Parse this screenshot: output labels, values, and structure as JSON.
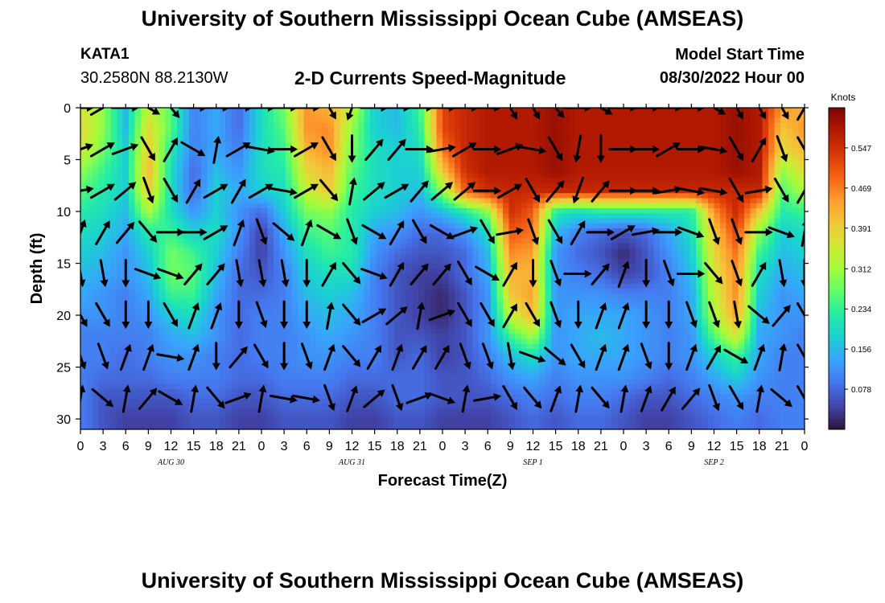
{
  "header": {
    "title": "University of Southern Mississippi Ocean Cube (AMSEAS)",
    "station": "KATA1",
    "coords": "30.2580N  88.2130W",
    "subtitle": "2-D Currents Speed-Magnitude",
    "model_start_label": "Model Start Time",
    "model_start_value": "08/30/2022 Hour 00"
  },
  "footer": {
    "title": "University of Southern Mississippi Ocean Cube (AMSEAS)"
  },
  "chart_data": {
    "type": "heatmap",
    "title": "2-D Currents Speed-Magnitude",
    "xlabel": "Forecast Time(Z)",
    "ylabel": "Depth (ft)",
    "xlim": [
      0,
      96
    ],
    "ylim": [
      0,
      31
    ],
    "x_ticks": [
      0,
      3,
      6,
      9,
      12,
      15,
      18,
      21,
      24,
      27,
      30,
      33,
      36,
      39,
      42,
      45,
      48,
      51,
      54,
      57,
      60,
      63,
      66,
      69,
      72,
      75,
      78,
      81,
      84,
      87,
      90,
      93,
      96
    ],
    "x_tick_labels": [
      "0",
      "3",
      "6",
      "9",
      "12",
      "15",
      "18",
      "21",
      "0",
      "3",
      "6",
      "9",
      "12",
      "15",
      "18",
      "21",
      "0",
      "3",
      "6",
      "9",
      "12",
      "15",
      "18",
      "21",
      "0",
      "3",
      "6",
      "9",
      "12",
      "15",
      "18",
      "21",
      "0"
    ],
    "day_labels": [
      {
        "x": 12,
        "label": "AUG 30"
      },
      {
        "x": 36,
        "label": "AUG 31"
      },
      {
        "x": 60,
        "label": "SEP 1"
      },
      {
        "x": 84,
        "label": "SEP 2"
      }
    ],
    "y_ticks": [
      0,
      5,
      10,
      15,
      20,
      25,
      30
    ],
    "y_tick_labels": [
      "0",
      "5",
      "10",
      "15",
      "20",
      "25",
      "30"
    ],
    "y_inverted": true,
    "colorbar": {
      "label": "Knots",
      "range": [
        0,
        0.625
      ],
      "ticks": [
        0.078,
        0.156,
        0.234,
        0.312,
        0.391,
        0.469,
        0.547
      ],
      "tick_labels": [
        "0.078",
        "0.156",
        "0.234",
        "0.312",
        "0.391",
        "0.469",
        "0.547"
      ],
      "colors": [
        "#30123b",
        "#4145ab",
        "#4675ed",
        "#39a2fc",
        "#1bcfd4",
        "#24eca6",
        "#61fc6c",
        "#a4fc3b",
        "#d1e834",
        "#f3c63a",
        "#fe9b2d",
        "#f36315",
        "#d93806",
        "#b11901",
        "#7a0403"
      ]
    },
    "speed_grid": {
      "x": [
        0,
        3,
        6,
        9,
        12,
        15,
        18,
        21,
        24,
        27,
        30,
        33,
        36,
        39,
        42,
        45,
        48,
        51,
        54,
        57,
        60,
        63,
        66,
        69,
        72,
        75,
        78,
        81,
        84,
        87,
        90,
        93,
        96
      ],
      "depth": [
        0,
        2,
        4,
        6,
        8,
        10,
        12,
        14,
        16,
        18,
        20,
        22,
        24,
        26,
        28,
        30
      ],
      "values": [
        [
          0.36,
          0.3,
          0.16,
          0.34,
          0.26,
          0.1,
          0.14,
          0.08,
          0.2,
          0.28,
          0.45,
          0.42,
          0.34,
          0.18,
          0.16,
          0.24,
          0.52,
          0.56,
          0.58,
          0.58,
          0.58,
          0.6,
          0.58,
          0.58,
          0.58,
          0.58,
          0.58,
          0.58,
          0.58,
          0.6,
          0.58,
          0.45,
          0.42
        ],
        [
          0.38,
          0.3,
          0.16,
          0.38,
          0.26,
          0.1,
          0.14,
          0.08,
          0.2,
          0.26,
          0.45,
          0.46,
          0.3,
          0.18,
          0.16,
          0.22,
          0.52,
          0.56,
          0.58,
          0.58,
          0.58,
          0.6,
          0.58,
          0.58,
          0.58,
          0.58,
          0.58,
          0.58,
          0.58,
          0.6,
          0.58,
          0.4,
          0.45
        ],
        [
          0.36,
          0.28,
          0.18,
          0.4,
          0.22,
          0.1,
          0.14,
          0.1,
          0.2,
          0.24,
          0.42,
          0.46,
          0.28,
          0.2,
          0.18,
          0.2,
          0.48,
          0.56,
          0.58,
          0.58,
          0.58,
          0.6,
          0.58,
          0.58,
          0.58,
          0.58,
          0.58,
          0.58,
          0.58,
          0.6,
          0.58,
          0.38,
          0.42
        ],
        [
          0.3,
          0.24,
          0.18,
          0.42,
          0.2,
          0.08,
          0.16,
          0.12,
          0.2,
          0.22,
          0.38,
          0.42,
          0.26,
          0.2,
          0.18,
          0.18,
          0.4,
          0.55,
          0.58,
          0.58,
          0.58,
          0.6,
          0.58,
          0.58,
          0.58,
          0.58,
          0.58,
          0.58,
          0.58,
          0.6,
          0.58,
          0.3,
          0.38
        ],
        [
          0.26,
          0.22,
          0.18,
          0.4,
          0.2,
          0.08,
          0.18,
          0.14,
          0.18,
          0.2,
          0.34,
          0.4,
          0.24,
          0.2,
          0.18,
          0.16,
          0.3,
          0.5,
          0.55,
          0.56,
          0.56,
          0.56,
          0.56,
          0.56,
          0.56,
          0.56,
          0.56,
          0.56,
          0.56,
          0.56,
          0.56,
          0.26,
          0.32
        ],
        [
          0.22,
          0.2,
          0.16,
          0.32,
          0.2,
          0.12,
          0.18,
          0.12,
          0.08,
          0.18,
          0.28,
          0.3,
          0.22,
          0.18,
          0.16,
          0.12,
          0.16,
          0.22,
          0.3,
          0.55,
          0.5,
          0.22,
          0.2,
          0.22,
          0.22,
          0.22,
          0.22,
          0.22,
          0.45,
          0.56,
          0.4,
          0.22,
          0.24
        ],
        [
          0.2,
          0.18,
          0.14,
          0.22,
          0.24,
          0.18,
          0.2,
          0.12,
          0.04,
          0.14,
          0.24,
          0.26,
          0.22,
          0.14,
          0.12,
          0.08,
          0.08,
          0.12,
          0.2,
          0.5,
          0.48,
          0.16,
          0.1,
          0.08,
          0.06,
          0.08,
          0.14,
          0.2,
          0.4,
          0.52,
          0.3,
          0.18,
          0.2
        ],
        [
          0.18,
          0.16,
          0.12,
          0.18,
          0.28,
          0.24,
          0.18,
          0.1,
          0.04,
          0.12,
          0.2,
          0.24,
          0.22,
          0.12,
          0.08,
          0.06,
          0.06,
          0.08,
          0.16,
          0.46,
          0.44,
          0.12,
          0.08,
          0.06,
          0.02,
          0.06,
          0.12,
          0.18,
          0.38,
          0.48,
          0.24,
          0.16,
          0.18
        ],
        [
          0.16,
          0.14,
          0.12,
          0.16,
          0.28,
          0.26,
          0.16,
          0.08,
          0.06,
          0.1,
          0.18,
          0.2,
          0.2,
          0.1,
          0.06,
          0.04,
          0.04,
          0.08,
          0.14,
          0.42,
          0.42,
          0.12,
          0.1,
          0.08,
          0.04,
          0.06,
          0.1,
          0.16,
          0.36,
          0.46,
          0.2,
          0.14,
          0.16
        ],
        [
          0.14,
          0.12,
          0.1,
          0.14,
          0.24,
          0.24,
          0.14,
          0.08,
          0.08,
          0.1,
          0.16,
          0.18,
          0.16,
          0.1,
          0.06,
          0.04,
          0.02,
          0.06,
          0.12,
          0.4,
          0.44,
          0.12,
          0.12,
          0.12,
          0.1,
          0.1,
          0.1,
          0.14,
          0.34,
          0.46,
          0.18,
          0.12,
          0.14
        ],
        [
          0.12,
          0.12,
          0.1,
          0.12,
          0.18,
          0.2,
          0.12,
          0.08,
          0.1,
          0.1,
          0.14,
          0.16,
          0.14,
          0.1,
          0.06,
          0.04,
          0.02,
          0.06,
          0.12,
          0.34,
          0.42,
          0.12,
          0.14,
          0.14,
          0.14,
          0.12,
          0.1,
          0.14,
          0.32,
          0.44,
          0.16,
          0.12,
          0.12
        ],
        [
          0.1,
          0.1,
          0.1,
          0.1,
          0.14,
          0.16,
          0.12,
          0.08,
          0.1,
          0.1,
          0.12,
          0.14,
          0.12,
          0.1,
          0.06,
          0.06,
          0.04,
          0.06,
          0.12,
          0.24,
          0.32,
          0.12,
          0.14,
          0.16,
          0.14,
          0.12,
          0.1,
          0.12,
          0.26,
          0.36,
          0.14,
          0.12,
          0.1
        ],
        [
          0.1,
          0.1,
          0.08,
          0.1,
          0.12,
          0.12,
          0.1,
          0.08,
          0.1,
          0.1,
          0.12,
          0.12,
          0.1,
          0.1,
          0.06,
          0.08,
          0.04,
          0.06,
          0.1,
          0.16,
          0.2,
          0.12,
          0.14,
          0.14,
          0.14,
          0.12,
          0.1,
          0.12,
          0.18,
          0.24,
          0.14,
          0.1,
          0.1
        ],
        [
          0.1,
          0.08,
          0.08,
          0.08,
          0.1,
          0.1,
          0.1,
          0.08,
          0.08,
          0.1,
          0.1,
          0.1,
          0.08,
          0.08,
          0.08,
          0.08,
          0.06,
          0.06,
          0.08,
          0.12,
          0.14,
          0.1,
          0.12,
          0.12,
          0.12,
          0.1,
          0.08,
          0.1,
          0.14,
          0.18,
          0.12,
          0.1,
          0.1
        ],
        [
          0.1,
          0.06,
          0.06,
          0.06,
          0.06,
          0.08,
          0.08,
          0.06,
          0.06,
          0.08,
          0.08,
          0.08,
          0.06,
          0.06,
          0.08,
          0.08,
          0.06,
          0.06,
          0.06,
          0.08,
          0.1,
          0.08,
          0.1,
          0.1,
          0.08,
          0.06,
          0.06,
          0.08,
          0.1,
          0.12,
          0.1,
          0.1,
          0.1
        ],
        [
          0.1,
          0.06,
          0.04,
          0.04,
          0.04,
          0.06,
          0.06,
          0.04,
          0.04,
          0.06,
          0.06,
          0.06,
          0.04,
          0.04,
          0.06,
          0.06,
          0.04,
          0.04,
          0.04,
          0.06,
          0.08,
          0.06,
          0.08,
          0.08,
          0.06,
          0.04,
          0.04,
          0.06,
          0.08,
          0.1,
          0.08,
          0.1,
          0.1
        ]
      ]
    },
    "vectors": {
      "x": [
        0,
        3,
        6,
        9,
        12,
        15,
        18,
        21,
        24,
        27,
        30,
        33,
        36,
        39,
        42,
        45,
        48,
        51,
        54,
        57,
        60,
        63,
        66,
        69,
        72,
        75,
        78,
        81,
        84,
        87,
        90,
        93,
        96
      ],
      "depth": [
        0,
        4,
        8,
        12,
        16,
        20,
        24,
        28
      ],
      "directions_deg": [
        [
          90,
          60,
          90,
          120,
          140,
          90,
          90,
          90,
          90,
          90,
          90,
          150,
          200,
          90,
          90,
          90,
          90,
          90,
          90,
          150,
          150,
          140,
          90,
          120,
          90,
          90,
          90,
          90,
          120,
          150,
          150,
          150,
          30
        ],
        [
          70,
          60,
          70,
          150,
          30,
          120,
          10,
          60,
          100,
          90,
          60,
          150,
          180,
          40,
          40,
          90,
          80,
          60,
          90,
          70,
          100,
          150,
          190,
          180,
          90,
          90,
          60,
          90,
          100,
          150,
          30,
          160,
          150
        ],
        [
          80,
          60,
          50,
          160,
          150,
          30,
          60,
          30,
          60,
          100,
          60,
          140,
          10,
          50,
          60,
          40,
          50,
          50,
          90,
          60,
          150,
          40,
          200,
          40,
          90,
          90,
          80,
          100,
          100,
          150,
          80,
          150,
          30
        ],
        [
          20,
          30,
          40,
          140,
          90,
          90,
          60,
          20,
          160,
          130,
          20,
          120,
          160,
          120,
          30,
          150,
          120,
          70,
          150,
          80,
          160,
          150,
          30,
          90,
          60,
          80,
          90,
          110,
          160,
          160,
          90,
          110,
          10
        ],
        [
          170,
          170,
          180,
          110,
          110,
          40,
          40,
          170,
          170,
          170,
          180,
          30,
          140,
          110,
          30,
          40,
          40,
          150,
          120,
          30,
          180,
          160,
          90,
          40,
          20,
          180,
          160,
          90,
          140,
          160,
          30,
          170,
          180
        ],
        [
          150,
          150,
          180,
          180,
          150,
          20,
          20,
          180,
          160,
          180,
          180,
          10,
          140,
          60,
          50,
          10,
          70,
          150,
          150,
          30,
          150,
          160,
          180,
          20,
          20,
          180,
          180,
          160,
          160,
          170,
          130,
          40,
          150
        ],
        [
          160,
          160,
          20,
          20,
          100,
          20,
          180,
          40,
          150,
          180,
          160,
          20,
          140,
          30,
          20,
          30,
          30,
          160,
          160,
          170,
          110,
          130,
          150,
          20,
          20,
          160,
          180,
          20,
          30,
          120,
          20,
          10,
          150
        ],
        [
          10,
          130,
          10,
          40,
          120,
          10,
          140,
          70,
          10,
          100,
          100,
          160,
          20,
          50,
          160,
          70,
          110,
          10,
          80,
          150,
          140,
          20,
          10,
          140,
          10,
          20,
          30,
          40,
          160,
          150,
          10,
          130,
          150
        ]
      ]
    }
  }
}
